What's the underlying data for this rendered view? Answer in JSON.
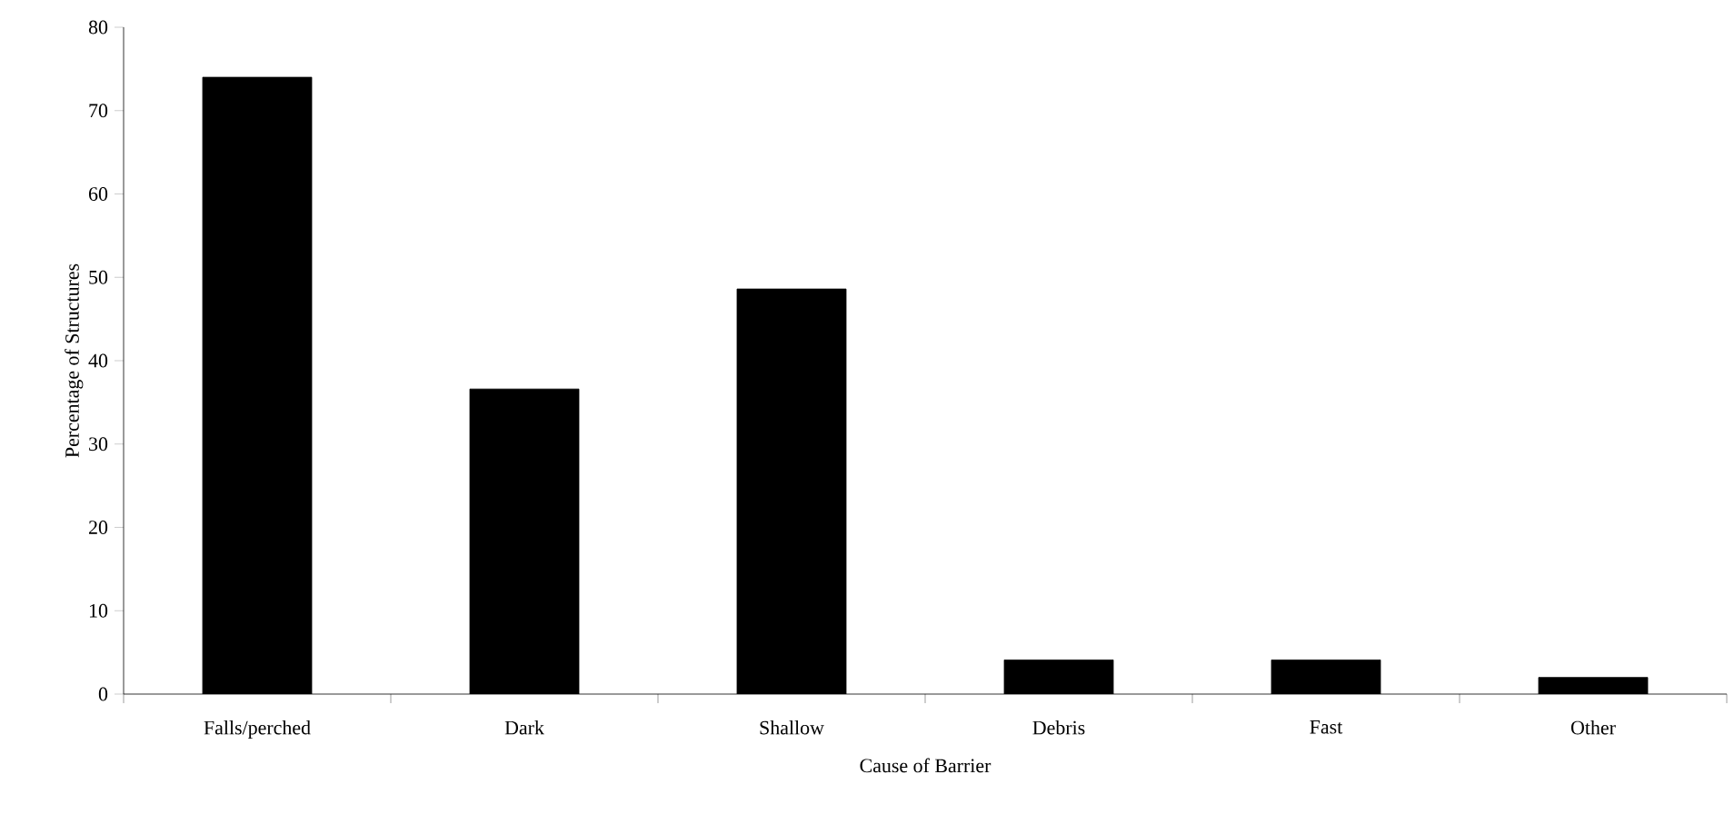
{
  "chart_data": {
    "type": "bar",
    "xlabel": "Cause of Barrier",
    "ylabel": "Percentage of Structures",
    "categories": [
      "Falls/perched",
      "Dark",
      "Shallow",
      "Debris",
      "Fast",
      "Other"
    ],
    "values": [
      74,
      36.6,
      48.6,
      4.1,
      4.1,
      2.0
    ],
    "color": "#000000",
    "ylim": [
      0,
      80
    ],
    "yticks": [
      0,
      10,
      20,
      30,
      40,
      50,
      60,
      70,
      80
    ],
    "grid": false
  }
}
